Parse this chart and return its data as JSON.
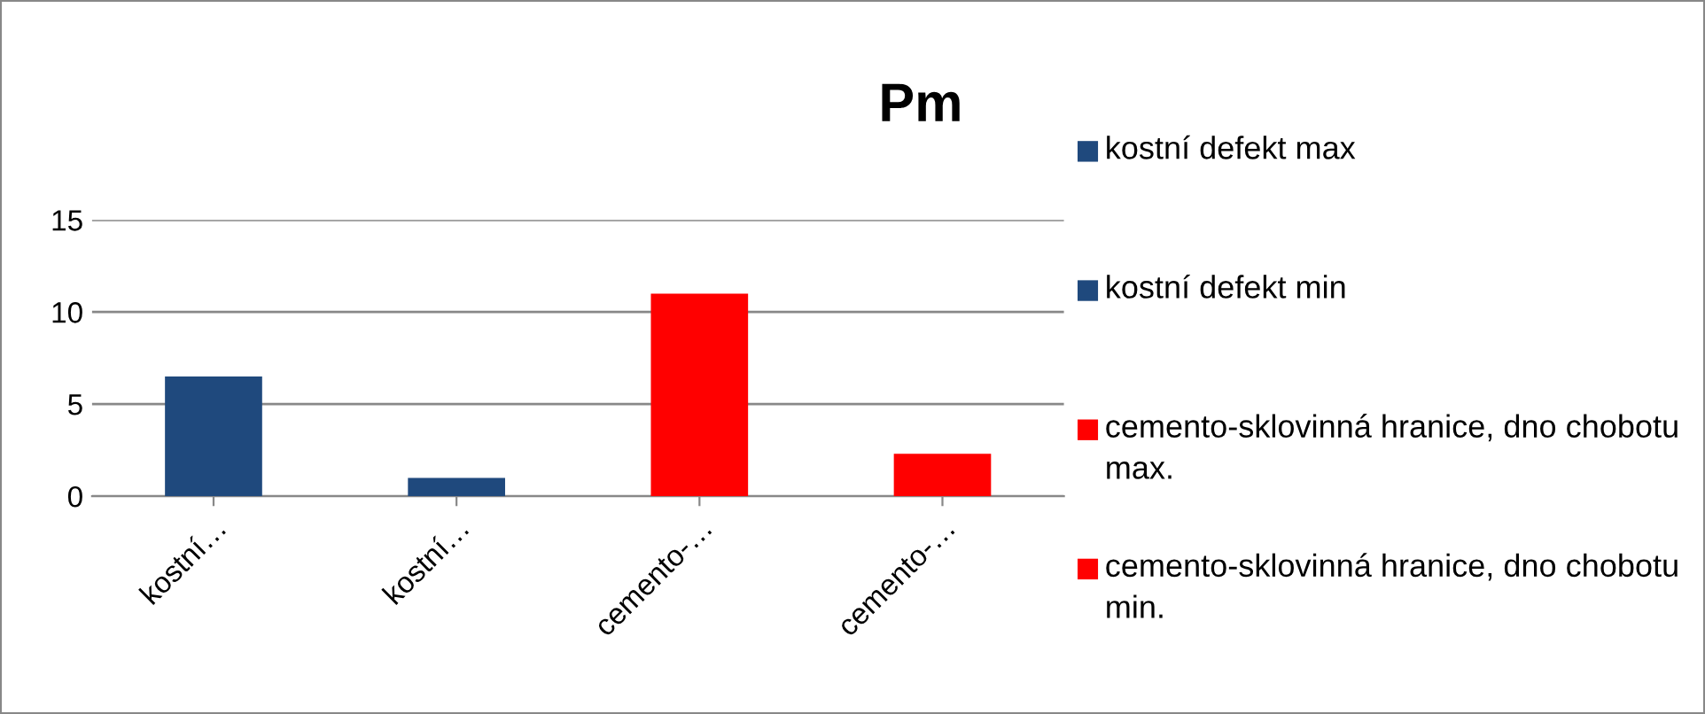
{
  "chart_data": {
    "type": "bar",
    "title": "Pm",
    "categories": [
      "kostní…",
      "kostní…",
      "cemento-…",
      "cemento-…"
    ],
    "series": [
      {
        "name": "kostní defekt max",
        "color": "#1f497d",
        "values": [
          6.5,
          null,
          null,
          null
        ]
      },
      {
        "name": "kostní defekt min",
        "color": "#1f497d",
        "values": [
          null,
          1,
          null,
          null
        ]
      },
      {
        "name": "cemento-sklovinná hranice, dno chobotu max.",
        "color": "#ff0000",
        "values": [
          null,
          null,
          11,
          null
        ]
      },
      {
        "name": "cemento-sklovinná hranice, dno chobotu min.",
        "color": "#ff0000",
        "values": [
          null,
          null,
          null,
          2.3
        ]
      }
    ],
    "ylim": [
      0,
      15
    ],
    "yticks": [
      0,
      5,
      10,
      15
    ],
    "grid": "y",
    "legend": "right"
  }
}
